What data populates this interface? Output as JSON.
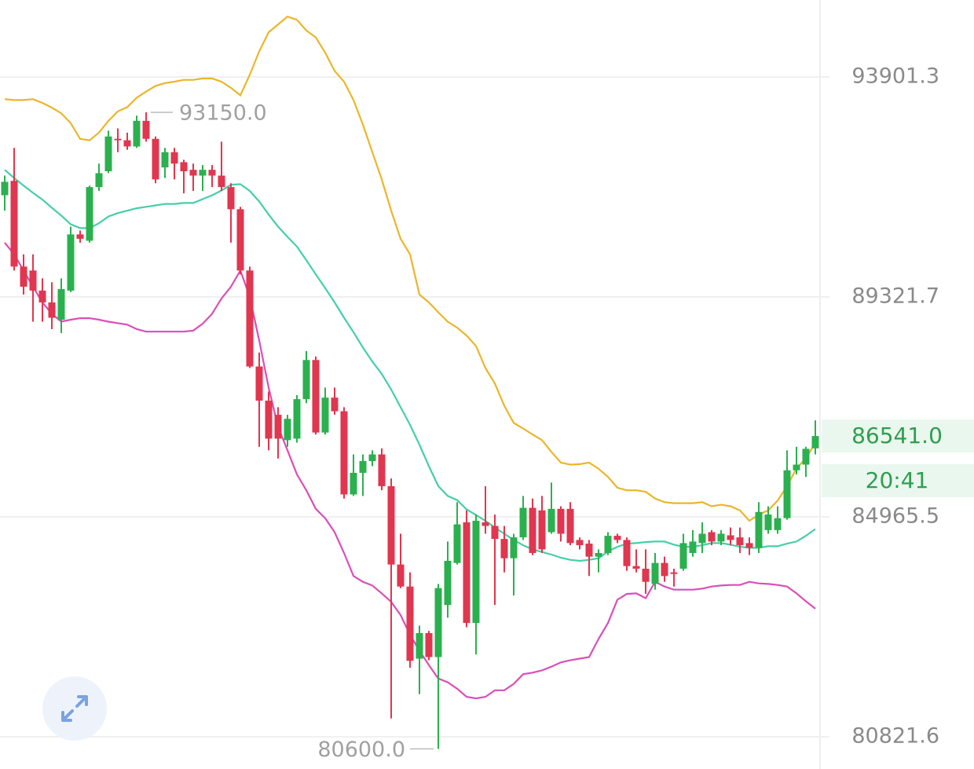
{
  "chart_data": {
    "type": "candlestick",
    "yscale": "log",
    "ylim": [
      80232,
      95559
    ],
    "yticks": [
      80821.6,
      84965.5,
      89321.7,
      93901.3
    ],
    "grid": true,
    "up_color": "#2bb04f",
    "down_color": "#e0364f",
    "candles": {
      "open": [
        91410,
        91710,
        89940,
        89860,
        89450,
        89210,
        88860,
        89450,
        90600,
        90470,
        91580,
        91910,
        92590,
        92560,
        92430,
        92970,
        92590,
        91990,
        92310,
        92100,
        91940,
        91820,
        91940,
        91820,
        91580,
        91120,
        89860,
        87920,
        87240,
        86960,
        86460,
        86490,
        87270,
        88050,
        86610,
        87300,
        87030,
        85400,
        85820,
        86050,
        86180,
        85560,
        84050,
        83630,
        82270,
        82750,
        82300,
        83280,
        84080,
        84860,
        82940,
        84860,
        84790,
        84540,
        84170,
        84570,
        85140,
        85090,
        84670,
        85120,
        85120,
        84520,
        84450,
        84200,
        84270,
        84600,
        84520,
        84020,
        83970,
        83680,
        84080,
        83900,
        83970,
        84270,
        84460,
        84670,
        84490,
        84610,
        84570,
        84460,
        84370,
        84710,
        84710,
        84940,
        85870,
        85980,
        86300
      ],
      "high": [
        91820,
        92400,
        90190,
        90190,
        89700,
        89620,
        89700,
        90760,
        90680,
        91610,
        92070,
        92760,
        92810,
        92720,
        93080,
        93150,
        92640,
        92400,
        92400,
        92150,
        92070,
        92040,
        92040,
        92530,
        91660,
        91170,
        89940,
        88200,
        87420,
        87110,
        86960,
        87350,
        88230,
        88120,
        87500,
        87500,
        87110,
        86180,
        86180,
        86260,
        86300,
        85710,
        84640,
        83900,
        82890,
        82790,
        83680,
        84490,
        85250,
        85090,
        85010,
        85560,
        85010,
        84790,
        84640,
        85370,
        85320,
        85370,
        85630,
        85170,
        85250,
        84570,
        84520,
        84340,
        84670,
        84640,
        84570,
        84340,
        84340,
        84270,
        84200,
        83970,
        84640,
        84710,
        84860,
        84710,
        84710,
        84760,
        84760,
        84570,
        85250,
        85170,
        85170,
        86260,
        86330,
        86330,
        86850
      ],
      "low": [
        91090,
        89860,
        89370,
        88820,
        88820,
        88670,
        88590,
        89420,
        90430,
        90430,
        91500,
        91870,
        92310,
        92360,
        92400,
        92530,
        91660,
        91770,
        91740,
        91450,
        91500,
        91500,
        91580,
        91500,
        90430,
        89780,
        87890,
        86330,
        86260,
        86100,
        86330,
        86410,
        87190,
        86570,
        86570,
        86960,
        85320,
        85370,
        85370,
        85950,
        85480,
        81160,
        83600,
        82100,
        81610,
        82240,
        80600,
        83040,
        84050,
        82860,
        82350,
        84640,
        83280,
        83900,
        83460,
        84520,
        84230,
        84270,
        84640,
        84490,
        84420,
        84340,
        83830,
        83900,
        84230,
        84460,
        83930,
        83900,
        83490,
        83570,
        83720,
        83630,
        83930,
        84200,
        84270,
        84420,
        84420,
        84420,
        84270,
        84230,
        84270,
        84640,
        84640,
        84910,
        85790,
        85740,
        86180
      ],
      "close": [
        91690,
        89940,
        89530,
        89450,
        89210,
        88900,
        89480,
        90600,
        90510,
        91580,
        91870,
        92640,
        92560,
        92430,
        92970,
        92590,
        91740,
        92310,
        92070,
        91910,
        91820,
        91940,
        91820,
        91580,
        91120,
        89860,
        87920,
        87240,
        86490,
        86490,
        86880,
        87270,
        88050,
        86610,
        87300,
        87030,
        85400,
        85820,
        86050,
        86180,
        85560,
        84050,
        83630,
        82230,
        82750,
        82300,
        83600,
        84120,
        84820,
        82940,
        84890,
        84790,
        84540,
        84170,
        84570,
        85140,
        84270,
        84340,
        85120,
        84640,
        84460,
        84420,
        84200,
        84270,
        84600,
        84520,
        84020,
        83970,
        83720,
        84080,
        83830,
        83870,
        84460,
        84490,
        84640,
        84490,
        84640,
        84520,
        84420,
        84370,
        85060,
        85010,
        84940,
        85870,
        85980,
        86290,
        86541
      ]
    },
    "series": [
      {
        "color": "#eab62a",
        "values": [
          93430,
          93410,
          93410,
          93430,
          93350,
          93250,
          93130,
          92920,
          92590,
          92560,
          92720,
          92970,
          93170,
          93260,
          93460,
          93590,
          93710,
          93770,
          93800,
          93840,
          93840,
          93870,
          93870,
          93800,
          93670,
          93510,
          93950,
          94450,
          94860,
          95030,
          95200,
          95130,
          94900,
          94750,
          94420,
          94030,
          93800,
          93410,
          92890,
          92310,
          91740,
          91090,
          90510,
          90190,
          89370,
          89210,
          89010,
          88820,
          88700,
          88540,
          88330,
          87890,
          87580,
          87140,
          86800,
          86690,
          86570,
          86460,
          86230,
          86020,
          85980,
          85990,
          86020,
          85900,
          85740,
          85530,
          85480,
          85480,
          85450,
          85320,
          85250,
          85230,
          85230,
          85230,
          85250,
          85170,
          85200,
          85170,
          85090,
          84890,
          85010,
          85090,
          85280,
          85560,
          85910,
          86100,
          86410
        ]
      },
      {
        "color": "#45cfa8",
        "values": [
          91940,
          91770,
          91610,
          91460,
          91320,
          91150,
          90990,
          90810,
          90730,
          90730,
          90830,
          90970,
          91040,
          91090,
          91140,
          91170,
          91200,
          91230,
          91230,
          91250,
          91250,
          91330,
          91410,
          91510,
          91630,
          91640,
          91500,
          91280,
          91010,
          90760,
          90550,
          90350,
          90070,
          89780,
          89500,
          89210,
          88900,
          88610,
          88300,
          88020,
          87770,
          87460,
          87110,
          86760,
          86370,
          85950,
          85560,
          85370,
          85290,
          85110,
          85000,
          84890,
          84760,
          84640,
          84520,
          84420,
          84340,
          84290,
          84240,
          84180,
          84140,
          84120,
          84140,
          84170,
          84300,
          84390,
          84450,
          84460,
          84480,
          84490,
          84490,
          84430,
          84390,
          84390,
          84420,
          84460,
          84460,
          84430,
          84390,
          84370,
          84370,
          84400,
          84400,
          84450,
          84490,
          84600,
          84730
        ]
      },
      {
        "color": "#d94fb8",
        "values": [
          90430,
          90190,
          89860,
          89530,
          89210,
          88980,
          88820,
          88860,
          88890,
          88890,
          88860,
          88820,
          88790,
          88760,
          88670,
          88620,
          88620,
          88620,
          88620,
          88620,
          88640,
          88780,
          88980,
          89290,
          89530,
          89860,
          89320,
          88440,
          87500,
          86720,
          86260,
          85790,
          85480,
          85120,
          84940,
          84670,
          84270,
          83830,
          83720,
          83650,
          83500,
          83340,
          83090,
          82720,
          82420,
          82150,
          81900,
          81830,
          81710,
          81560,
          81530,
          81560,
          81680,
          81680,
          81800,
          81980,
          82010,
          82050,
          82120,
          82200,
          82240,
          82270,
          82300,
          82640,
          82940,
          83380,
          83490,
          83500,
          83410,
          83720,
          83630,
          83570,
          83570,
          83570,
          83590,
          83630,
          83650,
          83660,
          83660,
          83720,
          83690,
          83680,
          83660,
          83630,
          83500,
          83350,
          83210
        ]
      }
    ],
    "max_label": {
      "value": 93150,
      "label": "93150.0"
    },
    "min_label": {
      "value": 80600,
      "label": "80600.0"
    },
    "last_price": {
      "value": 86541,
      "label": "86541.0"
    },
    "countdown": "20:41"
  }
}
